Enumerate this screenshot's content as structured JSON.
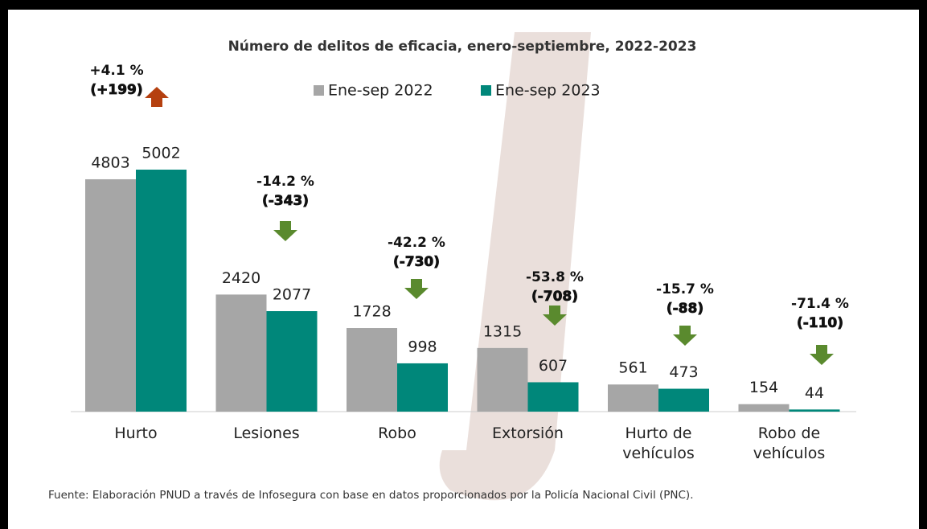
{
  "chart_data": {
    "type": "bar",
    "title": "Número de delitos de eficacia, enero-septiembre, 2022-2023",
    "categories": [
      "Hurto",
      "Lesiones",
      "Robo",
      "Extorsión",
      "Hurto de\nvehículos",
      "Robo de\nvehículos"
    ],
    "series": [
      {
        "name": "Ene-sep 2022",
        "color": "#a6a6a6",
        "values": [
          4803,
          2420,
          1728,
          1315,
          561,
          154
        ]
      },
      {
        "name": "Ene-sep 2023",
        "color": "#00877a",
        "values": [
          5002,
          2077,
          998,
          607,
          473,
          44
        ]
      }
    ],
    "annotations": [
      {
        "percent": "+4.1 %",
        "change": "(+199)",
        "direction": "up"
      },
      {
        "percent": "-14.2 %",
        "change": "(-343)",
        "direction": "down"
      },
      {
        "percent": "-42.2 %",
        "change": "(-730)",
        "direction": "down"
      },
      {
        "percent": "-53.8 %",
        "change": "(-708)",
        "direction": "down"
      },
      {
        "percent": "-15.7 %",
        "change": "(-88)",
        "direction": "down"
      },
      {
        "percent": "-71.4 %",
        "change": "(-110)",
        "direction": "down"
      }
    ],
    "arrow_colors": {
      "up": "#b5400f",
      "down": "#5a8a2e"
    },
    "source": "Fuente: Elaboración PNUD a través de Infosegura con base en datos proporcionados por la Policía Nacional Civil (PNC)."
  }
}
